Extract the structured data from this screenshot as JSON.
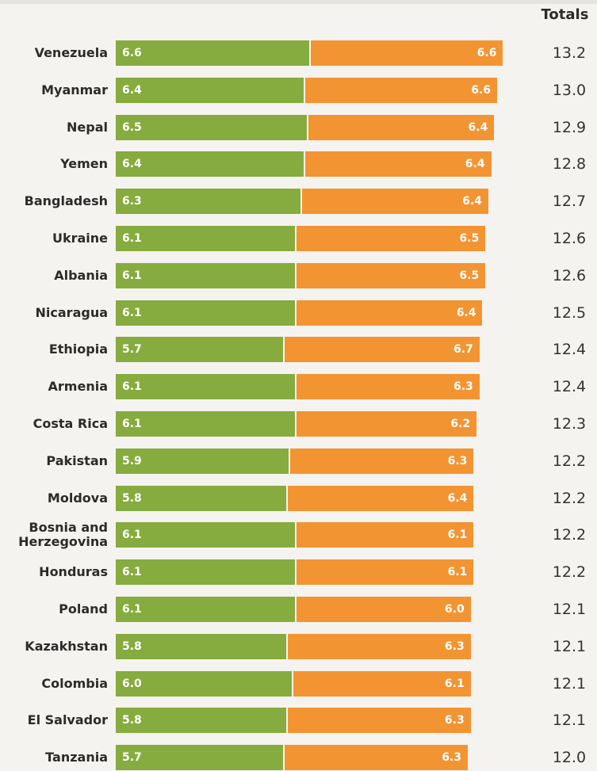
{
  "chart_data": {
    "type": "stacked-bar",
    "totals_header": "Totals",
    "categories": [
      "Venezuela",
      "Myanmar",
      "Nepal",
      "Yemen",
      "Bangladesh",
      "Ukraine",
      "Albania",
      "Nicaragua",
      "Ethiopia",
      "Armenia",
      "Costa Rica",
      "Pakistan",
      "Moldova",
      "Bosnia and Herzegovina",
      "Honduras",
      "Poland",
      "Kazakhstan",
      "Colombia",
      "El Salvador",
      "Tanzania"
    ],
    "series": [
      {
        "color": "#86ab3e",
        "values": [
          6.6,
          6.4,
          6.5,
          6.4,
          6.3,
          6.1,
          6.1,
          6.1,
          5.7,
          6.1,
          6.1,
          5.9,
          5.8,
          6.1,
          6.1,
          6.1,
          5.8,
          6.0,
          5.8,
          5.7
        ],
        "value_labels": [
          "6.6",
          "6.4",
          "6.5",
          "6.4",
          "6.3",
          "6.1",
          "6.1",
          "6.1",
          "5.7",
          "6.1",
          "6.1",
          "5.9",
          "5.8",
          "6.1",
          "6.1",
          "6.1",
          "5.8",
          "6.0",
          "5.8",
          "5.7"
        ]
      },
      {
        "color": "#f39432",
        "values": [
          6.6,
          6.6,
          6.4,
          6.4,
          6.4,
          6.5,
          6.5,
          6.4,
          6.7,
          6.3,
          6.2,
          6.3,
          6.4,
          6.1,
          6.1,
          6.0,
          6.3,
          6.1,
          6.3,
          6.3
        ],
        "value_labels": [
          "6.6",
          "6.6",
          "6.4",
          "6.4",
          "6.4",
          "6.5",
          "6.5",
          "6.4",
          "6.7",
          "6.3",
          "6.2",
          "6.3",
          "6.4",
          "6.1",
          "6.1",
          "6.0",
          "6.3",
          "6.1",
          "6.3",
          "6.3"
        ]
      }
    ],
    "totals": [
      13.2,
      13.0,
      12.9,
      12.8,
      12.7,
      12.6,
      12.6,
      12.5,
      12.4,
      12.4,
      12.3,
      12.2,
      12.2,
      12.2,
      12.2,
      12.1,
      12.1,
      12.1,
      12.1,
      12.0
    ],
    "totals_labels": [
      "13.2",
      "13.0",
      "12.9",
      "12.8",
      "12.7",
      "12.6",
      "12.6",
      "12.5",
      "12.4",
      "12.4",
      "12.3",
      "12.2",
      "12.2",
      "12.2",
      "12.2",
      "12.1",
      "12.1",
      "12.1",
      "12.1",
      "12.0"
    ]
  }
}
